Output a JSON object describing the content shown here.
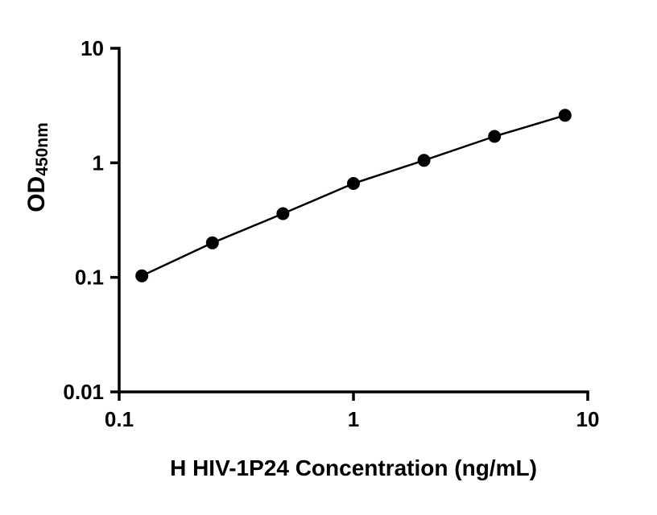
{
  "chart_data": {
    "type": "scatter",
    "title": "",
    "xlabel": "H HIV-1P24 Concentration (ng/mL)",
    "ylabel_main": "OD",
    "ylabel_sub": "450nm",
    "xscale": "log",
    "yscale": "log",
    "xlim": [
      0.1,
      10
    ],
    "ylim": [
      0.01,
      10
    ],
    "x": [
      0.125,
      0.25,
      0.5,
      1,
      2,
      4,
      8
    ],
    "y": [
      0.103,
      0.2,
      0.36,
      0.66,
      1.05,
      1.7,
      2.6
    ],
    "x_ticks": [
      {
        "value": 0.1,
        "label": "0.1"
      },
      {
        "value": 1,
        "label": "1"
      },
      {
        "value": 10,
        "label": "10"
      }
    ],
    "y_ticks": [
      {
        "value": 0.01,
        "label": "0.01"
      },
      {
        "value": 0.1,
        "label": "0.1"
      },
      {
        "value": 1,
        "label": "1"
      },
      {
        "value": 10,
        "label": "10"
      }
    ],
    "grid": false,
    "legend": false,
    "marker_color": "#000000",
    "line_color": "#000000",
    "axis_color": "#000000",
    "background": "#ffffff"
  }
}
